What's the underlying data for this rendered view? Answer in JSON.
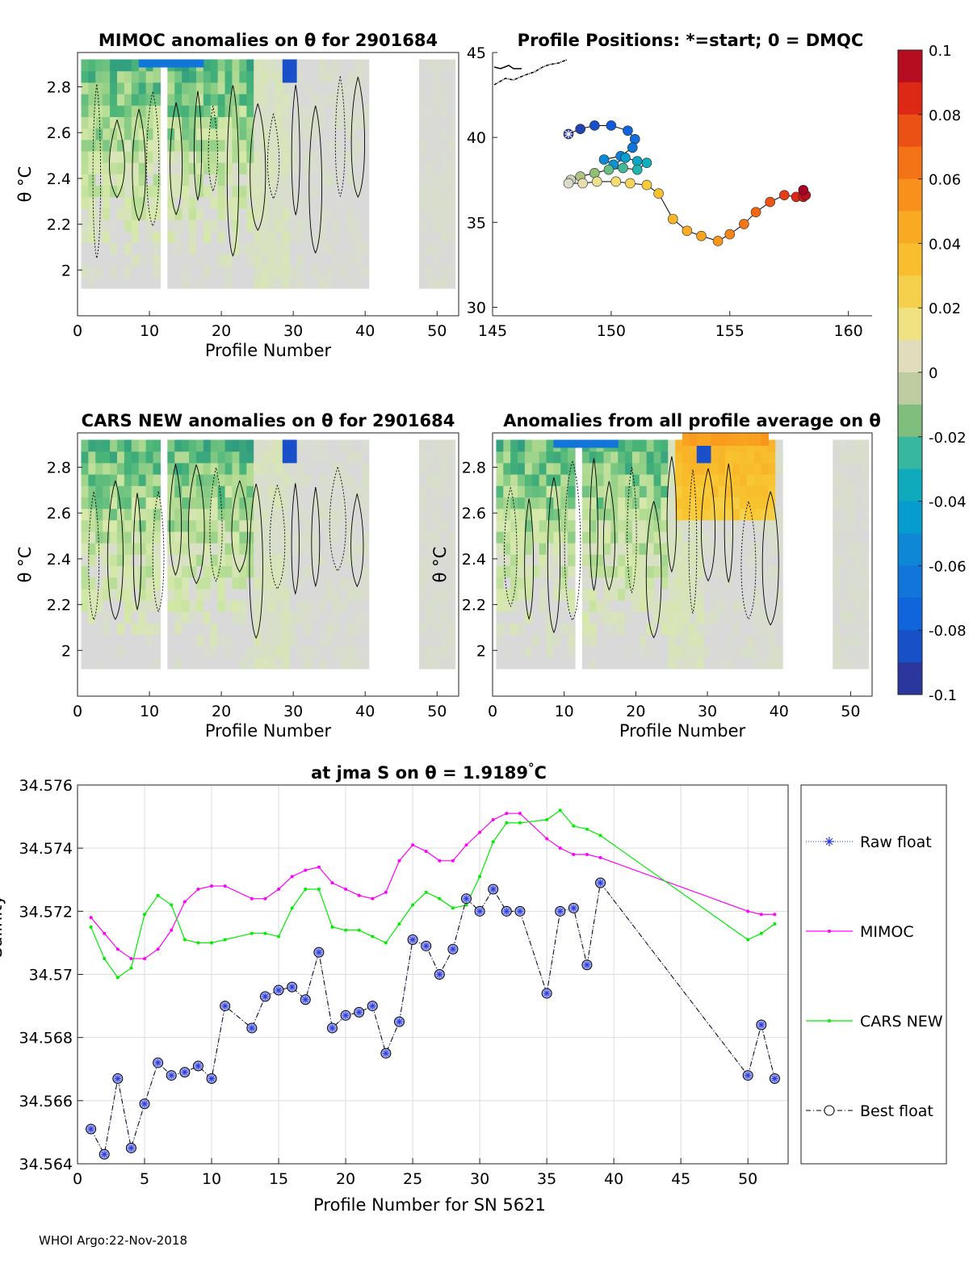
{
  "chart_data": [
    {
      "type": "heatmap",
      "title": "MIMOC anomalies on θ  for 2901684",
      "xlabel": "Profile Number",
      "ylabel": "θ °C",
      "xlim": [
        0,
        53
      ],
      "ylim": [
        1.8,
        2.95
      ],
      "xticks": [
        "0",
        "10",
        "20",
        "30",
        "40",
        "50"
      ],
      "yticks": [
        "2",
        "2.2",
        "2.4",
        "2.6",
        "2.8"
      ]
    },
    {
      "type": "scatter",
      "title": "Profile Positions: *=start; 0 = DMQC",
      "xlim": [
        145,
        161
      ],
      "ylim": [
        29.5,
        45
      ],
      "xticks": [
        "145",
        "150",
        "155",
        "160"
      ],
      "yticks": [
        "30",
        "35",
        "40",
        "45"
      ],
      "lon": [
        148.2,
        148.7,
        149.3,
        150.0,
        150.7,
        151.0,
        150.9,
        150.4,
        149.7,
        150.1,
        150.6,
        151.1,
        151.5,
        151.1,
        150.5,
        149.9,
        149.3,
        148.7,
        148.3,
        148.2,
        148.8,
        149.4,
        150.2,
        150.8,
        151.5,
        152.0,
        152.6,
        153.2,
        153.8,
        154.5,
        155.0,
        155.6,
        156.1,
        156.7,
        157.3,
        157.8,
        158.1,
        158.2,
        158.1
      ],
      "lat": [
        40.2,
        40.5,
        40.7,
        40.7,
        40.4,
        39.9,
        39.4,
        38.9,
        38.7,
        38.4,
        38.8,
        38.6,
        38.5,
        38.1,
        38.2,
        38.1,
        37.9,
        37.7,
        37.5,
        37.3,
        37.3,
        37.4,
        37.4,
        37.3,
        37.2,
        36.7,
        35.2,
        34.5,
        34.2,
        33.9,
        34.3,
        34.9,
        35.6,
        36.2,
        36.6,
        36.5,
        36.5,
        36.6,
        36.9
      ]
    },
    {
      "type": "heatmap",
      "title": "CARS NEW anomalies on θ for 2901684",
      "xlabel": "Profile Number",
      "ylabel": "θ °C",
      "xlim": [
        0,
        53
      ],
      "ylim": [
        1.8,
        2.95
      ],
      "xticks": [
        "0",
        "10",
        "20",
        "30",
        "40",
        "50"
      ],
      "yticks": [
        "2",
        "2.2",
        "2.4",
        "2.6",
        "2.8"
      ]
    },
    {
      "type": "heatmap",
      "title": "Anomalies from all profile average on θ",
      "xlabel": "Profile Number",
      "ylabel": "θ °C",
      "xlim": [
        0,
        53
      ],
      "ylim": [
        1.8,
        2.95
      ],
      "xticks": [
        "0",
        "10",
        "20",
        "30",
        "40",
        "50"
      ],
      "yticks": [
        "2",
        "2.2",
        "2.4",
        "2.6",
        "2.8"
      ]
    },
    {
      "type": "line",
      "title": "at jma S on θ = 1.9189",
      "title_unit": "°C",
      "xlabel": "Profile Number for SN 5621",
      "ylabel": "Salinity",
      "xlim": [
        0,
        53
      ],
      "ylim": [
        34.564,
        34.576
      ],
      "xticks": [
        0,
        5,
        10,
        15,
        20,
        25,
        30,
        35,
        40,
        45,
        50
      ],
      "yticks": [
        34.564,
        34.566,
        34.568,
        34.57,
        34.572,
        34.574,
        34.576
      ],
      "ytick_labels": [
        "34.564",
        "34.566",
        "34.568",
        "34.57",
        "34.572",
        "34.574",
        "34.576"
      ],
      "series": [
        {
          "name": "MIMOC",
          "color": "#ff00ff",
          "x": [
            1,
            2,
            3,
            4,
            5,
            6,
            7,
            8,
            9,
            10,
            11,
            13,
            14,
            15,
            16,
            17,
            18,
            19,
            20,
            21,
            22,
            23,
            24,
            25,
            26,
            27,
            28,
            29,
            30,
            31,
            32,
            33,
            35,
            36,
            37,
            38,
            39,
            50,
            51,
            52
          ],
          "values": [
            34.5718,
            34.5713,
            34.5708,
            34.5705,
            34.5705,
            34.5708,
            34.5714,
            34.5723,
            34.5727,
            34.5728,
            34.5728,
            34.5724,
            34.5724,
            34.5727,
            34.5731,
            34.5733,
            34.5734,
            34.5729,
            34.5727,
            34.5725,
            34.5724,
            34.5726,
            34.5736,
            34.5741,
            34.5739,
            34.5736,
            34.5736,
            34.5741,
            34.5745,
            34.5749,
            34.5751,
            34.5751,
            34.5743,
            34.574,
            34.5738,
            34.5738,
            34.5737,
            34.572,
            34.5719,
            34.5719
          ]
        },
        {
          "name": "CARS NEW",
          "color": "#00ee00",
          "x": [
            1,
            2,
            3,
            4,
            5,
            6,
            7,
            8,
            9,
            10,
            11,
            13,
            14,
            15,
            16,
            17,
            18,
            19,
            20,
            21,
            22,
            23,
            24,
            25,
            26,
            27,
            28,
            29,
            30,
            31,
            32,
            33,
            35,
            36,
            37,
            38,
            39,
            50,
            51,
            52
          ],
          "values": [
            34.5715,
            34.5705,
            34.5699,
            34.5702,
            34.5719,
            34.5725,
            34.5722,
            34.5711,
            34.571,
            34.571,
            34.5711,
            34.5713,
            34.5713,
            34.5712,
            34.5721,
            34.5727,
            34.5727,
            34.5715,
            34.5714,
            34.5714,
            34.5712,
            34.571,
            34.5716,
            34.5722,
            34.5726,
            34.5724,
            34.5721,
            34.5722,
            34.5731,
            34.5742,
            34.5748,
            34.5748,
            34.5749,
            34.5752,
            34.5747,
            34.5746,
            34.5744,
            34.5711,
            34.5713,
            34.5716
          ]
        },
        {
          "name": "Raw float",
          "color": "#2a3bd8",
          "x": [
            1,
            2,
            3,
            4,
            5,
            6,
            7,
            8,
            9,
            10,
            11,
            13,
            14,
            15,
            16,
            17,
            18,
            19,
            20,
            21,
            22,
            23,
            24,
            25,
            26,
            27,
            28,
            29,
            30,
            31,
            32,
            33,
            35,
            36,
            37,
            38,
            39,
            50,
            51,
            52
          ],
          "values": [
            34.5651,
            34.5643,
            34.5667,
            34.5645,
            34.5659,
            34.5672,
            34.5668,
            34.5669,
            34.5671,
            34.5667,
            34.569,
            34.5683,
            34.5693,
            34.5695,
            34.5696,
            34.5692,
            34.5707,
            34.5683,
            34.5687,
            34.5688,
            34.569,
            34.5675,
            34.5685,
            34.5711,
            34.5709,
            34.57,
            34.5708,
            34.5724,
            34.572,
            34.5727,
            34.572,
            34.572,
            34.5694,
            34.572,
            34.5721,
            34.5703,
            34.5729,
            34.5668,
            34.5684,
            34.5667
          ]
        },
        {
          "name": "Best float",
          "color": "#000000",
          "x": [
            1,
            2,
            3,
            4,
            5,
            6,
            7,
            8,
            9,
            10,
            11,
            13,
            14,
            15,
            16,
            17,
            18,
            19,
            20,
            21,
            22,
            23,
            24,
            25,
            26,
            27,
            28,
            29,
            30,
            31,
            32,
            33,
            35,
            36,
            37,
            38,
            39,
            50,
            51,
            52
          ],
          "values": [
            34.5651,
            34.5643,
            34.5667,
            34.5645,
            34.5659,
            34.5672,
            34.5668,
            34.5669,
            34.5671,
            34.5667,
            34.569,
            34.5683,
            34.5693,
            34.5695,
            34.5696,
            34.5692,
            34.5707,
            34.5683,
            34.5687,
            34.5688,
            34.569,
            34.5675,
            34.5685,
            34.5711,
            34.5709,
            34.57,
            34.5708,
            34.5724,
            34.572,
            34.5727,
            34.572,
            34.572,
            34.5694,
            34.572,
            34.5721,
            34.5703,
            34.5729,
            34.5668,
            34.5684,
            34.5667
          ]
        }
      ]
    },
    {
      "type": "colorbar",
      "range": [
        -0.1,
        0.1
      ],
      "tick_labels": [
        "0.1",
        "0.08",
        "0.06",
        "0.04",
        "0.02",
        "0",
        "-0.02",
        "-0.04",
        "-0.06",
        "-0.08",
        "-0.1"
      ]
    }
  ],
  "footer": "WHOI Argo:22-Nov-2018"
}
